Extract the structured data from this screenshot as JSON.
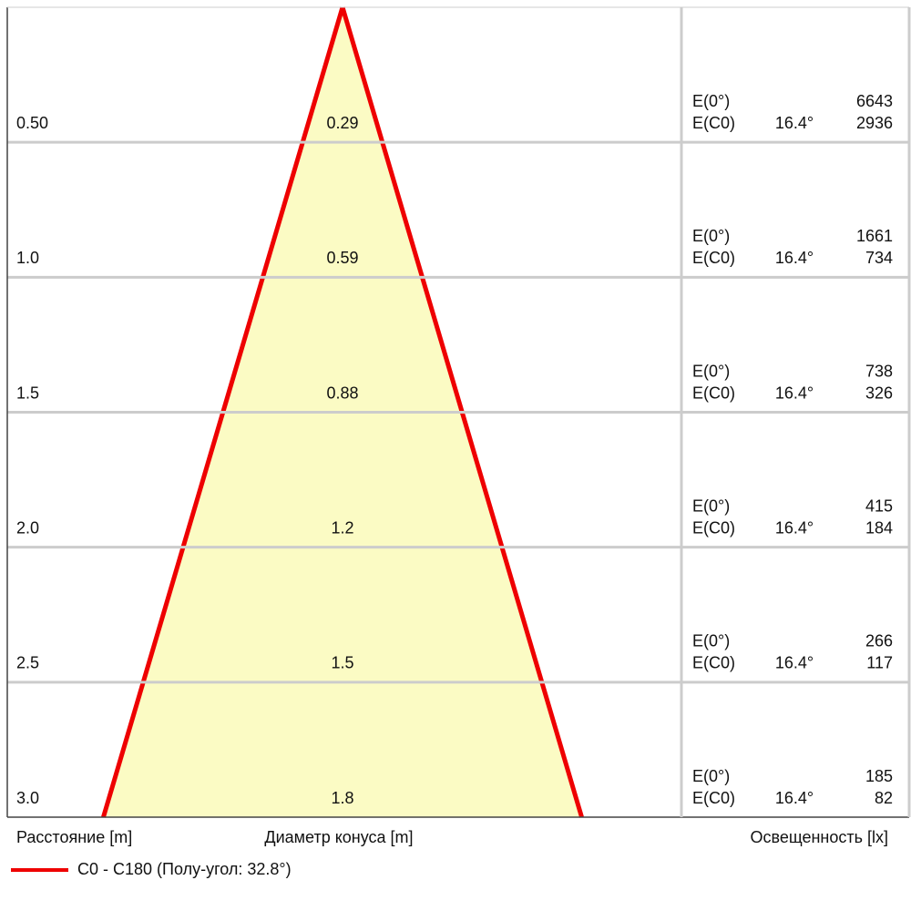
{
  "chart_data": {
    "type": "cone",
    "distances": [
      {
        "value": 0.5,
        "label": "0.50"
      },
      {
        "value": 1.0,
        "label": "1.0"
      },
      {
        "value": 1.5,
        "label": "1.5"
      },
      {
        "value": 2.0,
        "label": "2.0"
      },
      {
        "value": 2.5,
        "label": "2.5"
      },
      {
        "value": 3.0,
        "label": "3.0"
      }
    ],
    "diameters": [
      0.29,
      0.59,
      0.88,
      1.2,
      1.5,
      1.8
    ],
    "e0_label": "E(0°)",
    "ec0_label": "E(C0)",
    "angle": {
      "value": 16.4,
      "label": "16.4°"
    },
    "e0": [
      6643,
      1661,
      738,
      415,
      266,
      185
    ],
    "ec0": [
      2936,
      734,
      326,
      184,
      117,
      82
    ],
    "ylim": [
      0,
      3.0
    ],
    "x_label": "Расстояние [m]",
    "diameter_label": "Диаметр конуса [m]",
    "illuminance_label": "Освещенность [lx]",
    "series": [
      {
        "name": "C0 - C180 (Полу-угол: 32.8°)",
        "color": "#ee0000"
      }
    ],
    "fill_color": "#fbfbc4"
  }
}
